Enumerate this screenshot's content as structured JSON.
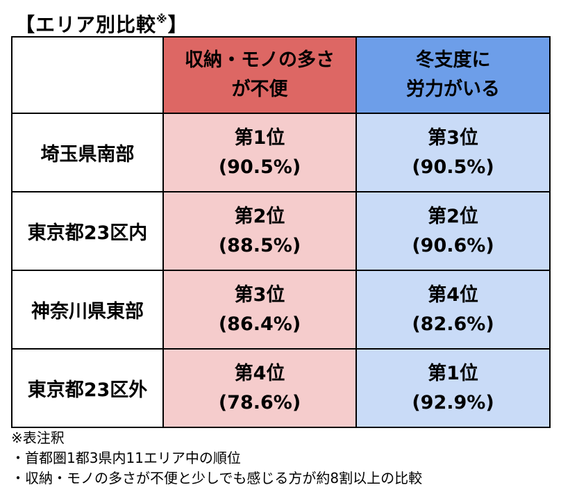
{
  "title": {
    "text": "【エリア別比較",
    "mark": "※",
    "close": "】"
  },
  "table": {
    "headers": [
      {
        "line1": "収納・モノの多さ",
        "line2": "が不便"
      },
      {
        "line1": "冬支度に",
        "line2": "労力がいる"
      }
    ],
    "rows": [
      {
        "area": "埼玉県南部",
        "a_rank": "第1位",
        "a_pct": "(90.5%)",
        "b_rank": "第3位",
        "b_pct": "(90.5%)"
      },
      {
        "area": "東京都23区内",
        "a_rank": "第2位",
        "a_pct": "(88.5%)",
        "b_rank": "第2位",
        "b_pct": "(90.6%)"
      },
      {
        "area": "神奈川県東部",
        "a_rank": "第3位",
        "a_pct": "(86.4%)",
        "b_rank": "第4位",
        "b_pct": "(82.6%)"
      },
      {
        "area": "東京都23区外",
        "a_rank": "第4位",
        "a_pct": "(78.6%)",
        "b_rank": "第1位",
        "b_pct": "(92.9%)"
      }
    ]
  },
  "notes": {
    "heading": "※表注釈",
    "items": [
      "・首都圏1都3県内11エリア中の順位",
      "・収納・モノの多さが不便と少しでも感じる方が約8割以上の比較"
    ]
  },
  "colors": {
    "header_a": "#dd6764",
    "header_b": "#6d9ee9",
    "cell_a": "#f5cccc",
    "cell_b": "#c9dbf7"
  }
}
